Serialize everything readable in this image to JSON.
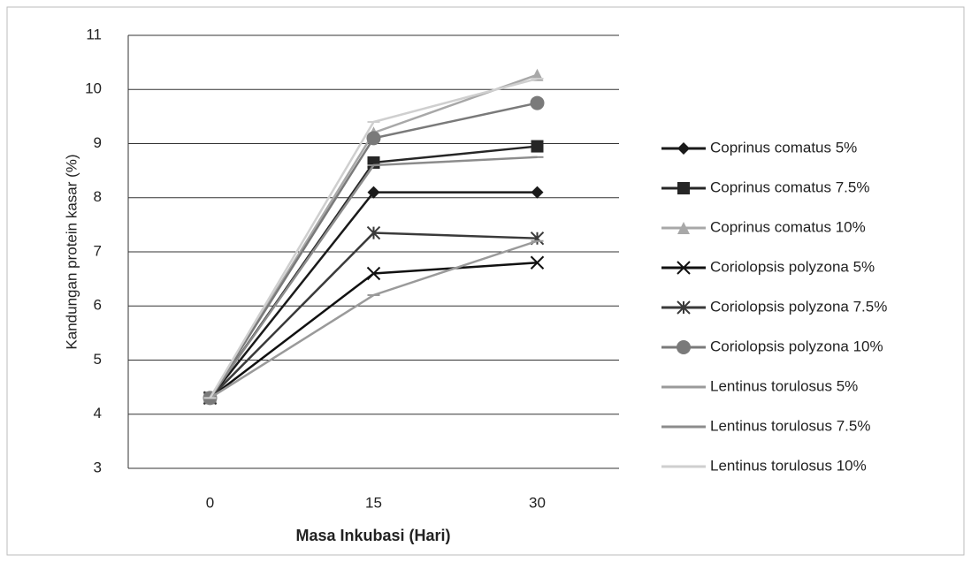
{
  "chart_data": {
    "type": "line",
    "x_label": "Masa Inkubasi (Hari)",
    "y_label": "Kandungan protein kasar (%)",
    "categories": [
      "0",
      "15",
      "30"
    ],
    "ylim": [
      3,
      11
    ],
    "yticks": [
      3,
      4,
      5,
      6,
      7,
      8,
      9,
      10,
      11
    ],
    "grid": true,
    "legend": "right",
    "series": [
      {
        "name": "Coprinus comatus 5%",
        "color": "#1a1a1a",
        "marker": "diamond",
        "values": [
          4.3,
          8.1,
          8.1
        ]
      },
      {
        "name": "Coprinus comatus 7.5%",
        "color": "#262626",
        "marker": "square",
        "values": [
          4.3,
          8.65,
          8.95
        ]
      },
      {
        "name": "Coprinus comatus 10%",
        "color": "#a8a8a8",
        "marker": "triangle",
        "values": [
          4.3,
          9.2,
          10.27
        ]
      },
      {
        "name": "Coriolopsis polyzona 5%",
        "color": "#111111",
        "marker": "x",
        "values": [
          4.3,
          6.6,
          6.8
        ]
      },
      {
        "name": "Coriolopsis polyzona 7.5%",
        "color": "#3a3a3a",
        "marker": "star",
        "values": [
          4.3,
          7.35,
          7.25
        ]
      },
      {
        "name": "Coriolopsis polyzona 10%",
        "color": "#7a7a7a",
        "marker": "circle",
        "values": [
          4.3,
          9.1,
          9.75
        ]
      },
      {
        "name": "Lentinus torulosus 5%",
        "color": "#9a9a9a",
        "marker": "dash",
        "values": [
          4.3,
          6.2,
          7.2
        ]
      },
      {
        "name": "Lentinus torulosus 7.5%",
        "color": "#8c8c8c",
        "marker": "dash",
        "values": [
          4.3,
          8.6,
          8.75
        ]
      },
      {
        "name": "Lentinus torulosus 10%",
        "color": "#cfcfcf",
        "marker": "dash",
        "values": [
          4.3,
          9.4,
          10.2
        ]
      }
    ]
  }
}
